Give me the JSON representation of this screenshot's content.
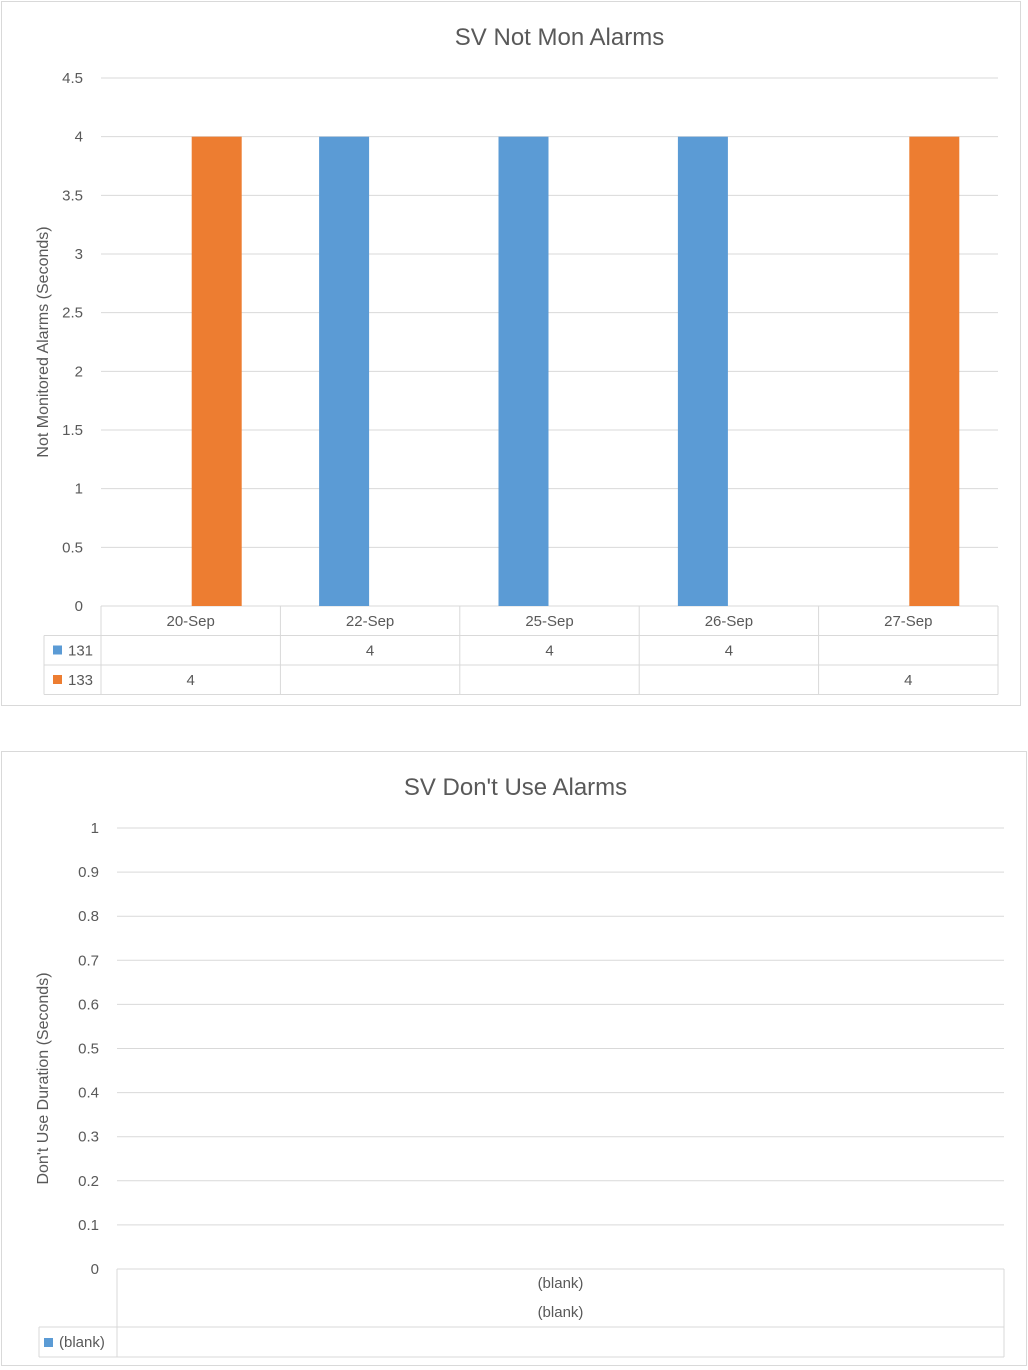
{
  "chart_data": [
    {
      "type": "bar",
      "title": "SV Not Mon Alarms",
      "ylabel": "Not Monitored Alarms (Seconds)",
      "xlabel": "",
      "ylim": [
        0,
        4.5
      ],
      "yticks": [
        "0",
        "0.5",
        "1",
        "1.5",
        "2",
        "2.5",
        "3",
        "3.5",
        "4",
        "4.5"
      ],
      "categories": [
        "20-Sep",
        "22-Sep",
        "25-Sep",
        "26-Sep",
        "27-Sep"
      ],
      "series": [
        {
          "name": "131",
          "color": "#5B9BD5",
          "values": [
            null,
            4,
            4,
            4,
            null
          ],
          "labels": [
            "",
            "4",
            "4",
            "4",
            ""
          ]
        },
        {
          "name": "133",
          "color": "#ED7D31",
          "values": [
            4,
            null,
            null,
            null,
            4
          ],
          "labels": [
            "4",
            "",
            "",
            "",
            "4"
          ]
        }
      ],
      "grid": true,
      "legend": "data-table"
    },
    {
      "type": "bar",
      "title": "SV Don't Use Alarms",
      "ylabel": "Don't Use Duration (Seconds)",
      "xlabel": "",
      "ylim": [
        0,
        1
      ],
      "yticks": [
        "0",
        "0.1",
        "0.2",
        "0.3",
        "0.4",
        "0.5",
        "0.6",
        "0.7",
        "0.8",
        "0.9",
        "1"
      ],
      "categories": [
        "(blank)"
      ],
      "category_group": "(blank)",
      "series": [
        {
          "name": "(blank)",
          "color": "#5B9BD5",
          "values": [
            null
          ],
          "labels": [
            ""
          ]
        }
      ],
      "grid": true,
      "legend": "data-table"
    }
  ]
}
